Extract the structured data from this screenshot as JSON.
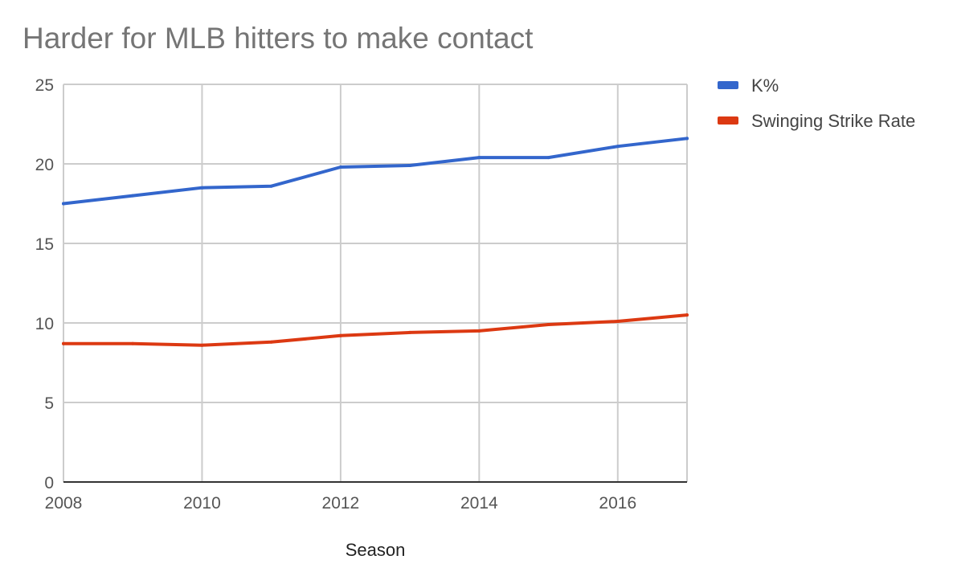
{
  "chart_data": {
    "type": "line",
    "title": "Harder for MLB hitters to make contact",
    "xlabel": "Season",
    "ylabel": "",
    "xlim": [
      2008,
      2017
    ],
    "ylim": [
      0,
      25
    ],
    "x_ticks": [
      2008,
      2010,
      2012,
      2014,
      2016
    ],
    "y_ticks": [
      0,
      5,
      10,
      15,
      20,
      25
    ],
    "x": [
      2008,
      2009,
      2010,
      2011,
      2012,
      2013,
      2014,
      2015,
      2016,
      2017
    ],
    "series": [
      {
        "name": "K%",
        "color": "#3366cc",
        "values": [
          17.5,
          18.0,
          18.5,
          18.6,
          19.8,
          19.9,
          20.4,
          20.4,
          21.1,
          21.6
        ]
      },
      {
        "name": "Swinging Strike Rate",
        "color": "#dc3912",
        "values": [
          8.7,
          8.7,
          8.6,
          8.8,
          9.2,
          9.4,
          9.5,
          9.9,
          10.1,
          10.5
        ]
      }
    ],
    "grid": true,
    "legend_position": "right"
  }
}
